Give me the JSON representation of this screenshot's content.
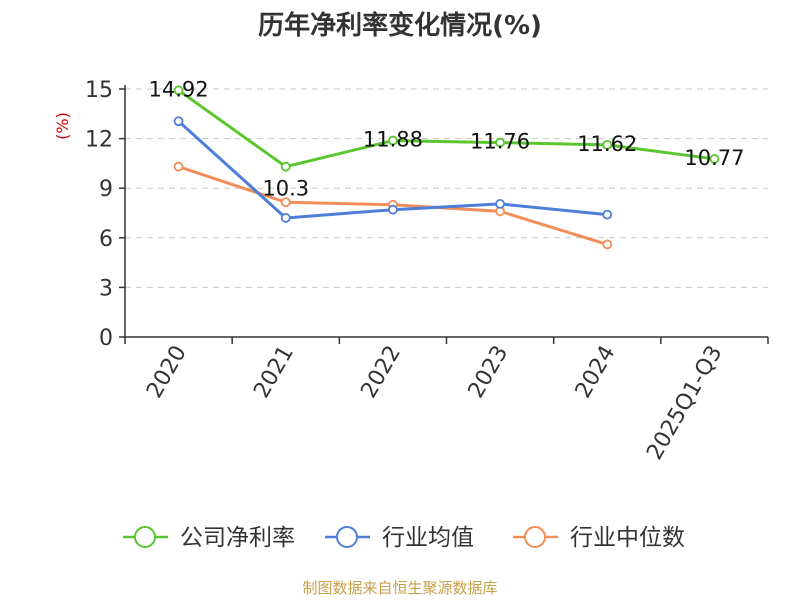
{
  "chart_data": {
    "type": "line",
    "title": "历年净利率变化情况(%)",
    "ylabel": "(%)",
    "categories": [
      "2020",
      "2021",
      "2022",
      "2023",
      "2024",
      "2025Q1-Q3"
    ],
    "ylim": [
      0,
      15
    ],
    "yticks": [
      0,
      3,
      6,
      9,
      12,
      15
    ],
    "grid": true,
    "legend_position": "bottom",
    "series": [
      {
        "name": "公司净利率",
        "color": "#5ac62f",
        "values": [
          14.92,
          10.3,
          11.88,
          11.76,
          11.62,
          10.77
        ],
        "labels": [
          "14.92",
          "10.3",
          "11.88",
          "11.76",
          "11.62",
          "10.77"
        ]
      },
      {
        "name": "行业均值",
        "color": "#4e7fd8",
        "values": [
          13.05,
          7.2,
          7.7,
          8.05,
          7.4,
          null
        ]
      },
      {
        "name": "行业中位数",
        "color": "#f28e5a",
        "values": [
          10.3,
          8.15,
          8.0,
          7.6,
          5.6,
          null
        ]
      }
    ]
  },
  "footer": {
    "source": "制图数据来自恒生聚源数据库"
  }
}
